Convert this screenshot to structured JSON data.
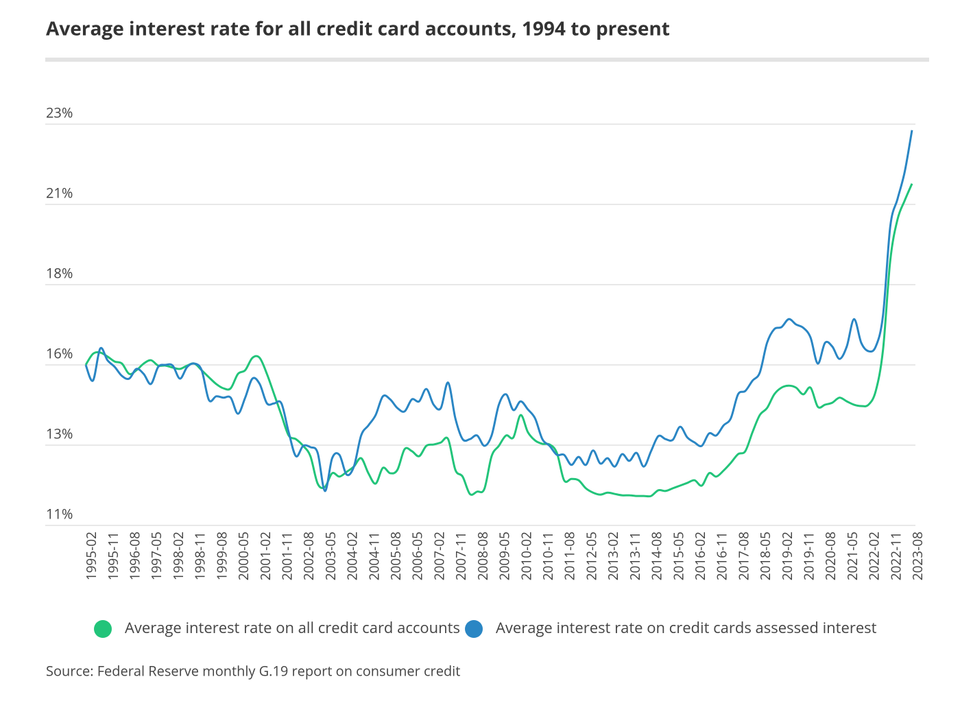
{
  "chart_data": {
    "type": "line",
    "title": "Average interest rate for all credit card accounts, 1994 to present",
    "source": "Source: Federal Reserve monthly G.19 report on consumer credit",
    "categories": [
      "1995-02",
      null,
      null,
      "1995-11",
      null,
      null,
      "1996-08",
      null,
      null,
      "1997-05",
      null,
      null,
      "1998-02",
      null,
      null,
      "1998-11",
      null,
      null,
      "1999-08",
      null,
      null,
      "2000-05",
      null,
      null,
      "2001-02",
      null,
      null,
      "2001-11",
      null,
      null,
      "2002-08",
      null,
      null,
      "2003-05",
      null,
      null,
      "2004-02",
      null,
      null,
      "2004-11",
      null,
      null,
      "2005-08",
      null,
      null,
      "2006-05",
      null,
      null,
      "2007-02",
      null,
      null,
      "2007-11",
      null,
      null,
      "2008-08",
      null,
      null,
      "2009-05",
      null,
      null,
      "2010-02",
      null,
      null,
      "2010-11",
      null,
      null,
      "2011-08",
      null,
      null,
      "2012-05",
      null,
      null,
      "2013-02",
      null,
      null,
      "2013-11",
      null,
      null,
      "2014-08",
      null,
      null,
      "2015-05",
      null,
      null,
      "2016-02",
      null,
      null,
      "2016-11",
      null,
      null,
      "2017-08",
      null,
      null,
      "2018-05",
      null,
      null,
      "2019-02",
      null,
      null,
      "2019-11",
      null,
      null,
      "2020-08",
      null,
      null,
      "2021-05",
      null,
      null,
      "2022-02",
      null,
      null,
      "2022-11",
      null,
      null,
      "2023-08"
    ],
    "series": [
      {
        "name": "Average interest rate on all credit card accounts",
        "color": "#22c47a",
        "values": [
          15.8,
          16.13,
          16.17,
          16.05,
          15.9,
          15.84,
          15.53,
          15.64,
          15.84,
          15.94,
          15.78,
          15.78,
          15.72,
          15.68,
          15.78,
          15.84,
          15.64,
          15.43,
          15.23,
          15.1,
          15.1,
          15.53,
          15.64,
          16.01,
          16.01,
          15.53,
          14.92,
          14.3,
          13.69,
          13.58,
          13.38,
          13.07,
          12.25,
          12.15,
          12.56,
          12.46,
          12.6,
          12.76,
          13.01,
          12.56,
          12.25,
          12.72,
          12.56,
          12.66,
          13.28,
          13.22,
          13.07,
          13.38,
          13.42,
          13.48,
          13.58,
          12.66,
          12.46,
          11.94,
          12.01,
          12.09,
          13.07,
          13.38,
          13.69,
          13.63,
          14.3,
          13.79,
          13.54,
          13.44,
          13.42,
          13.17,
          12.35,
          12.39,
          12.35,
          12.11,
          11.98,
          11.92,
          11.98,
          11.94,
          11.9,
          11.9,
          11.88,
          11.88,
          11.88,
          12.05,
          12.03,
          12.11,
          12.19,
          12.27,
          12.35,
          12.19,
          12.56,
          12.46,
          12.64,
          12.87,
          13.13,
          13.22,
          13.79,
          14.3,
          14.51,
          14.92,
          15.12,
          15.18,
          15.12,
          14.92,
          15.12,
          14.55,
          14.61,
          14.67,
          14.82,
          14.71,
          14.61,
          14.57,
          14.61,
          15.02,
          16.25,
          18.92,
          20.15,
          20.72,
          21.22
        ]
      },
      {
        "name": "Average interest rate on credit cards assessed interest",
        "color": "#2a86c4",
        "values": [
          15.8,
          15.33,
          16.29,
          15.94,
          15.74,
          15.47,
          15.39,
          15.68,
          15.53,
          15.23,
          15.74,
          15.8,
          15.78,
          15.39,
          15.74,
          15.84,
          15.64,
          14.75,
          14.86,
          14.82,
          14.82,
          14.34,
          14.82,
          15.39,
          15.23,
          14.65,
          14.65,
          14.65,
          13.79,
          13.07,
          13.38,
          13.34,
          13.17,
          12.03,
          13.01,
          13.11,
          12.52,
          12.76,
          13.69,
          13.99,
          14.3,
          14.86,
          14.77,
          14.51,
          14.41,
          14.77,
          14.71,
          15.08,
          14.61,
          14.51,
          15.27,
          14.2,
          13.58,
          13.58,
          13.69,
          13.38,
          13.69,
          14.61,
          14.92,
          14.45,
          14.71,
          14.47,
          14.2,
          13.58,
          13.38,
          13.11,
          13.11,
          12.81,
          13.05,
          12.81,
          13.24,
          12.85,
          13.01,
          12.76,
          13.13,
          12.93,
          13.17,
          12.76,
          13.22,
          13.67,
          13.58,
          13.56,
          13.95,
          13.63,
          13.48,
          13.38,
          13.75,
          13.69,
          13.99,
          14.2,
          14.92,
          15.02,
          15.33,
          15.57,
          16.46,
          16.87,
          16.93,
          17.17,
          17.01,
          16.91,
          16.62,
          15.84,
          16.46,
          16.35,
          15.98,
          16.35,
          17.17,
          16.46,
          16.21,
          16.35,
          17.28,
          19.94,
          20.76,
          21.58,
          22.82
        ]
      }
    ],
    "ylim": [
      11,
      23
    ],
    "yticks": [
      {
        "value": 11,
        "label": "11%"
      },
      {
        "value": 13.4,
        "label": "13%"
      },
      {
        "value": 15.8,
        "label": "16%"
      },
      {
        "value": 18.2,
        "label": "18%"
      },
      {
        "value": 20.6,
        "label": "21%"
      },
      {
        "value": 23,
        "label": "23%"
      }
    ],
    "grid": true,
    "legend": "bottom"
  }
}
